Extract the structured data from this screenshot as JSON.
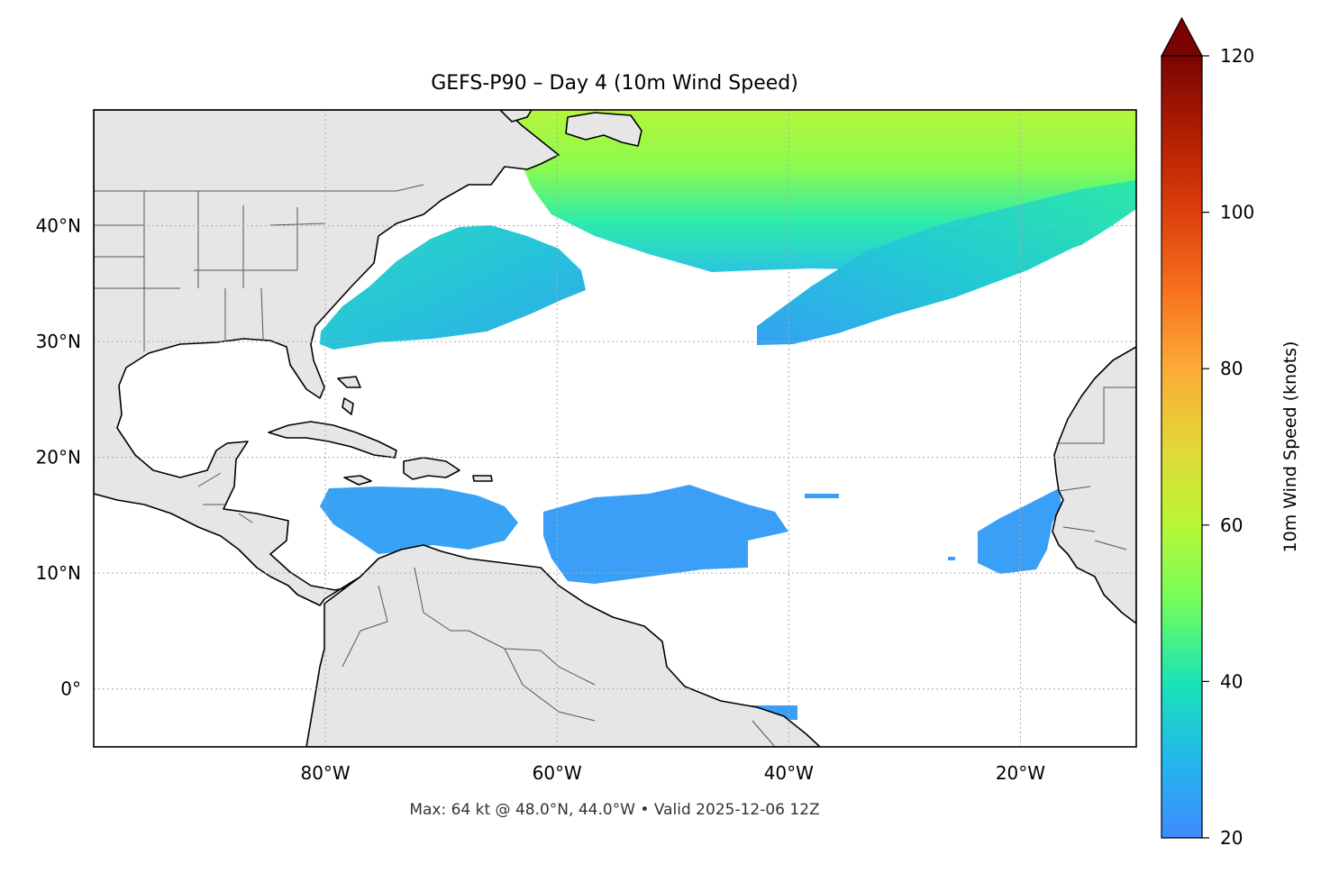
{
  "map": {
    "title": "GEFS-P90 – Day 4 (10m Wind Speed)",
    "footer": "Max: 64 kt @ 48.0°N, 44.0°W • Valid 2025-12-06 12Z",
    "extent": {
      "lon_min": -100,
      "lon_max": -10,
      "lat_min": -5,
      "lat_max": 50
    },
    "gridlines": true,
    "x_ticks": [
      {
        "value": -80,
        "label": "80°W"
      },
      {
        "value": -60,
        "label": "60°W"
      },
      {
        "value": -40,
        "label": "40°W"
      },
      {
        "value": -20,
        "label": "20°W"
      }
    ],
    "y_ticks": [
      {
        "value": 0,
        "label": "0°"
      },
      {
        "value": 10,
        "label": "10°N"
      },
      {
        "value": 20,
        "label": "20°N"
      },
      {
        "value": 30,
        "label": "30°N"
      },
      {
        "value": 40,
        "label": "40°N"
      }
    ],
    "colors": {
      "land": "#e6e6e6",
      "ocean": "#ffffff",
      "coast": "#000000",
      "borders": "#555555"
    }
  },
  "colorbar": {
    "label": "10m Wind Speed (knots)",
    "min": 20,
    "max": 120,
    "extend": "max",
    "ticks": [
      {
        "value": 20,
        "label": "20"
      },
      {
        "value": 40,
        "label": "40"
      },
      {
        "value": 60,
        "label": "60"
      },
      {
        "value": 80,
        "label": "80"
      },
      {
        "value": 100,
        "label": "100"
      },
      {
        "value": 120,
        "label": "120"
      }
    ],
    "colormap": "turbo"
  },
  "wind_regions": [
    {
      "name": "north-atlantic-jet",
      "speed_kt": 50
    },
    {
      "name": "northeast-trough-band",
      "speed_kt": 33
    },
    {
      "name": "us-east-coast-low",
      "speed_kt": 34
    },
    {
      "name": "caribbean-trades",
      "speed_kt": 24
    },
    {
      "name": "central-atlantic-trades",
      "speed_kt": 23
    },
    {
      "name": "cape-verde-area",
      "speed_kt": 23
    }
  ]
}
